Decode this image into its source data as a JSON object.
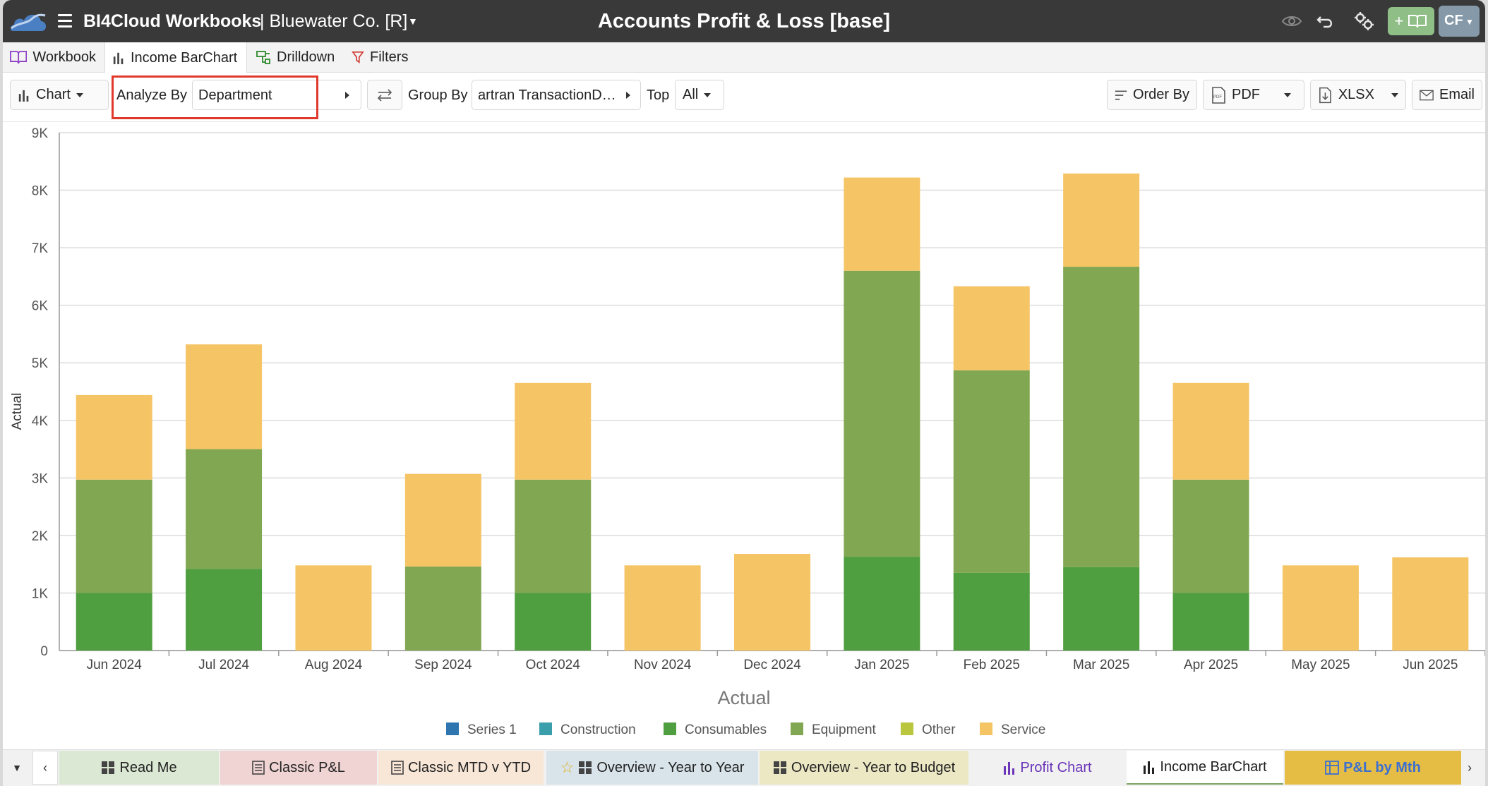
{
  "titlebar": {
    "app_name": "BI4Cloud Workbooks",
    "company": "| Bluewater Co. [R]",
    "page_title": "Accounts Profit & Loss [base]",
    "avatar_initials": "CF",
    "add_book_label": "+"
  },
  "tabs": [
    {
      "label": "Workbook",
      "icon": "book-icon"
    },
    {
      "label": "Income BarChart",
      "icon": "bar-chart-icon"
    },
    {
      "label": "Drilldown",
      "icon": "drilldown-icon"
    },
    {
      "label": "Filters",
      "icon": "filter-icon"
    }
  ],
  "toolbar": {
    "chart_label": "Chart",
    "analyze_by_label": "Analyze By",
    "analyze_by_value": "Department",
    "group_by_label": "Group By",
    "group_by_value": "artran TransactionD…",
    "top_label": "Top",
    "top_value": "All",
    "order_by_label": "Order By",
    "pdf_label": "PDF",
    "xlsx_label": "XLSX",
    "email_label": "Email"
  },
  "chart_data": {
    "type": "bar",
    "stacked": true,
    "title": "",
    "xlabel": "Actual",
    "ylabel": "Actual",
    "ylim": [
      0,
      9000
    ],
    "yticks": [
      0,
      1000,
      2000,
      3000,
      4000,
      5000,
      6000,
      7000,
      8000,
      9000
    ],
    "ytick_labels": [
      "0",
      "1K",
      "2K",
      "3K",
      "4K",
      "5K",
      "6K",
      "7K",
      "8K",
      "9K"
    ],
    "categories": [
      "Jun 2024",
      "Jul 2024",
      "Aug 2024",
      "Sep 2024",
      "Oct 2024",
      "Nov 2024",
      "Dec 2024",
      "Jan 2025",
      "Feb 2025",
      "Mar 2025",
      "Apr 2025",
      "May 2025",
      "Jun 2025"
    ],
    "series": [
      {
        "name": "Series 1",
        "color": "#2f75b0",
        "values": [
          0,
          0,
          0,
          0,
          0,
          0,
          0,
          0,
          0,
          0,
          0,
          0,
          0
        ]
      },
      {
        "name": "Construction",
        "color": "#3a9fab",
        "values": [
          0,
          0,
          0,
          0,
          0,
          0,
          0,
          0,
          0,
          0,
          0,
          0,
          0
        ]
      },
      {
        "name": "Consumables",
        "color": "#4f9e3f",
        "values": [
          1000,
          1420,
          0,
          0,
          1000,
          0,
          0,
          1630,
          1350,
          1450,
          1000,
          0,
          0
        ]
      },
      {
        "name": "Equipment",
        "color": "#82a752",
        "values": [
          1970,
          2080,
          0,
          1460,
          1970,
          0,
          0,
          4970,
          3520,
          5220,
          1970,
          0,
          0
        ]
      },
      {
        "name": "Other",
        "color": "#b9c63e",
        "values": [
          0,
          0,
          0,
          0,
          0,
          0,
          0,
          0,
          0,
          0,
          0,
          0,
          0
        ]
      },
      {
        "name": "Service",
        "color": "#f5c465",
        "values": [
          1470,
          1820,
          1480,
          1610,
          1680,
          1480,
          1680,
          1620,
          1460,
          1620,
          1680,
          1480,
          1620
        ]
      }
    ],
    "legend_position": "bottom"
  },
  "bottom_tabs": [
    {
      "label": "Read Me",
      "icon": "grid-icon",
      "bg": "#dbe8d3",
      "color": "#222"
    },
    {
      "label": "Classic P&L",
      "icon": "document-icon",
      "bg": "#f0d3d3",
      "color": "#222"
    },
    {
      "label": "Classic MTD v YTD",
      "icon": "document-icon",
      "bg": "#f8e6d6",
      "color": "#222"
    },
    {
      "label": "Overview - Year to Year",
      "icon": "grid-icon",
      "bg": "#d9e4ea",
      "color": "#222"
    },
    {
      "label": "Overview - Year to Budget",
      "icon": "grid-icon",
      "bg": "#ece8c4",
      "color": "#222"
    },
    {
      "label": "Profit Chart",
      "icon": "bar-chart-icon",
      "bg": "#f1f1f1",
      "color": "#6a35b8"
    },
    {
      "label": "Income BarChart",
      "icon": "bar-chart-icon",
      "bg": "#f1f1f1",
      "color": "#222"
    },
    {
      "label": "P&L by Mth",
      "icon": "pivot-icon",
      "bg": "#e5bd45",
      "color": "#3c6fd0"
    }
  ]
}
